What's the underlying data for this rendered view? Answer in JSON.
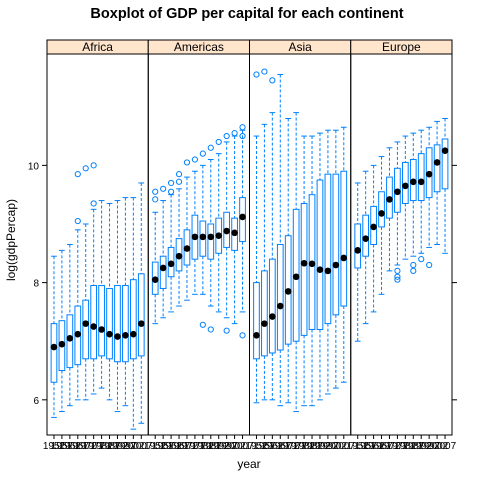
{
  "chart_data": {
    "type": "boxplot",
    "title": "Boxplot of GDP per capital for each continent",
    "xlabel": "year",
    "ylabel": "log(gdpPercap)",
    "ylim": [
      5.4,
      11.9
    ],
    "yticks": [
      6,
      8,
      10
    ],
    "colors": {
      "box": "#0080ff",
      "median": "#000000",
      "strip": "#ffe5cc",
      "outlier": "#0080ff"
    },
    "panels": [
      {
        "name": "Africa",
        "years": [
          1952,
          1957,
          1962,
          1967,
          1972,
          1977,
          1982,
          1987,
          1992,
          1997,
          2002,
          2007
        ],
        "medians": [
          6.9,
          6.95,
          7.05,
          7.12,
          7.3,
          7.25,
          7.2,
          7.12,
          7.08,
          7.1,
          7.12,
          7.3
        ],
        "q1": [
          6.3,
          6.5,
          6.55,
          6.6,
          6.7,
          6.7,
          6.75,
          6.7,
          6.65,
          6.65,
          6.7,
          6.75
        ],
        "q3": [
          7.3,
          7.35,
          7.45,
          7.6,
          7.7,
          7.95,
          7.95,
          7.9,
          7.95,
          7.95,
          8.05,
          8.15
        ],
        "lower_whisker": [
          5.7,
          5.8,
          5.9,
          6.0,
          6.0,
          6.1,
          6.2,
          6.0,
          5.8,
          5.9,
          5.5,
          5.6
        ],
        "upper_whisker": [
          8.45,
          8.55,
          8.65,
          8.9,
          9.0,
          9.25,
          9.4,
          9.35,
          9.4,
          9.45,
          9.45,
          9.7
        ],
        "outliers": [
          [],
          [],
          [],
          [
            9.05,
            9.85
          ],
          [
            9.95
          ],
          [
            9.35,
            10.0
          ],
          [],
          [],
          [],
          [],
          [],
          []
        ]
      },
      {
        "name": "Americas",
        "years": [
          1952,
          1957,
          1962,
          1967,
          1972,
          1977,
          1982,
          1987,
          1992,
          1997,
          2002,
          2007
        ],
        "medians": [
          8.05,
          8.25,
          8.32,
          8.45,
          8.58,
          8.78,
          8.78,
          8.78,
          8.8,
          8.88,
          8.85,
          9.12
        ],
        "q1": [
          7.8,
          7.9,
          8.1,
          8.2,
          8.3,
          8.4,
          8.45,
          8.4,
          8.5,
          8.6,
          8.55,
          8.7
        ],
        "q3": [
          8.35,
          8.45,
          8.6,
          8.75,
          8.9,
          9.15,
          9.05,
          9.0,
          9.1,
          9.2,
          9.1,
          9.45
        ],
        "lower_whisker": [
          7.3,
          7.4,
          7.5,
          7.6,
          7.7,
          7.8,
          7.8,
          7.6,
          7.5,
          7.4,
          7.3,
          7.5
        ],
        "upper_whisker": [
          9.2,
          9.4,
          9.5,
          9.6,
          9.8,
          9.9,
          10.0,
          10.1,
          10.2,
          10.4,
          10.5,
          10.6
        ],
        "outliers": [
          [
            9.55,
            9.42
          ],
          [
            9.6
          ],
          [
            9.7,
            9.55
          ],
          [
            9.85,
            9.72
          ],
          [
            10.05
          ],
          [
            10.1
          ],
          [
            10.2,
            7.28
          ],
          [
            10.3,
            7.2
          ],
          [
            10.4
          ],
          [
            10.5,
            7.18
          ],
          [
            10.55
          ],
          [
            10.65,
            10.5,
            7.1
          ]
        ]
      },
      {
        "name": "Asia",
        "years": [
          1952,
          1957,
          1962,
          1967,
          1972,
          1977,
          1982,
          1987,
          1992,
          1997,
          2002,
          2007
        ],
        "medians": [
          7.1,
          7.3,
          7.42,
          7.6,
          7.85,
          8.1,
          8.33,
          8.32,
          8.22,
          8.2,
          8.3,
          8.42
        ],
        "q1": [
          6.7,
          6.75,
          6.8,
          6.85,
          6.95,
          7.0,
          7.1,
          7.2,
          7.2,
          7.3,
          7.45,
          7.6
        ],
        "q3": [
          8.0,
          8.2,
          8.4,
          8.65,
          8.8,
          9.25,
          9.35,
          9.5,
          9.75,
          9.85,
          9.85,
          9.9
        ],
        "lower_whisker": [
          5.95,
          6.0,
          6.0,
          5.9,
          5.95,
          5.8,
          5.9,
          5.9,
          6.0,
          6.1,
          6.2,
          6.3
        ],
        "upper_whisker": [
          10.5,
          10.7,
          10.9,
          11.55,
          10.8,
          10.9,
          10.5,
          10.5,
          10.55,
          10.6,
          10.6,
          10.65
        ],
        "outliers": [
          [
            11.55
          ],
          [
            11.6
          ],
          [
            11.45
          ],
          [],
          [],
          [],
          [],
          [],
          [],
          [],
          [],
          []
        ]
      },
      {
        "name": "Europe",
        "years": [
          1952,
          1957,
          1962,
          1967,
          1972,
          1977,
          1982,
          1987,
          1992,
          1997,
          2002,
          2007
        ],
        "medians": [
          8.55,
          8.75,
          8.95,
          9.18,
          9.42,
          9.55,
          9.65,
          9.72,
          9.72,
          9.85,
          10.05,
          10.25
        ],
        "q1": [
          8.25,
          8.45,
          8.65,
          8.95,
          9.1,
          9.2,
          9.35,
          9.4,
          9.4,
          9.45,
          9.55,
          9.6
        ],
        "q3": [
          9.0,
          9.15,
          9.3,
          9.55,
          9.8,
          9.95,
          10.05,
          10.1,
          10.2,
          10.3,
          10.35,
          10.45
        ],
        "lower_whisker": [
          7.0,
          7.3,
          7.5,
          7.8,
          8.2,
          8.3,
          8.4,
          8.45,
          8.5,
          8.6,
          8.65,
          8.5
        ],
        "upper_whisker": [
          9.7,
          9.9,
          10.0,
          10.15,
          10.3,
          10.4,
          10.5,
          10.55,
          10.6,
          10.65,
          10.75,
          10.8
        ],
        "outliers": [
          [],
          [],
          [],
          [],
          [],
          [
            8.1,
            8.2,
            8.05
          ],
          [],
          [
            8.3,
            8.2
          ],
          [
            8.4
          ],
          [
            8.3
          ],
          [],
          []
        ]
      }
    ]
  }
}
